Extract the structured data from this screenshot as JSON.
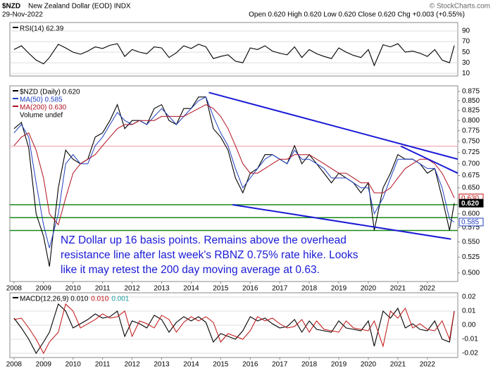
{
  "header": {
    "symbol": "$NZD",
    "name": "New Zealand Dollar (EOD) INDX",
    "date": "29-Nov-2022",
    "quote": "Open 0.620 High 0.620 Low 0.620 Close 0.620 Chg +0.003 (+0.55%)",
    "copyright": "© StockCharts.com"
  },
  "chart_data": [
    {
      "type": "line",
      "x": [
        2008,
        2008.25,
        2008.5,
        2008.75,
        2009,
        2009.2,
        2009.5,
        2009.75,
        2010,
        2010.25,
        2010.5,
        2010.75,
        2011,
        2011.25,
        2011.5,
        2011.75,
        2012,
        2012.25,
        2012.5,
        2012.75,
        2013,
        2013.25,
        2013.5,
        2013.75,
        2014,
        2014.25,
        2014.5,
        2014.75,
        2015,
        2015.25,
        2015.5,
        2015.75,
        2016,
        2016.25,
        2016.5,
        2016.75,
        2017,
        2017.25,
        2017.5,
        2017.75,
        2018,
        2018.25,
        2018.5,
        2018.75,
        2019,
        2019.25,
        2019.5,
        2019.75,
        2020,
        2020.2,
        2020.5,
        2020.75,
        2021,
        2021.25,
        2021.5,
        2021.75,
        2022,
        2022.25,
        2022.5,
        2022.75,
        2022.91
      ],
      "xlim": [
        2007.86,
        2023.03
      ],
      "ylim": [
        5,
        106
      ],
      "yticks": [
        10,
        30,
        50,
        70,
        90
      ],
      "grid": true,
      "series": [
        {
          "name": "RSI(14) 62.39",
          "color": "#000000",
          "values": [
            55,
            62,
            48,
            35,
            28,
            40,
            65,
            58,
            50,
            46,
            52,
            60,
            57,
            63,
            66,
            42,
            55,
            50,
            47,
            60,
            58,
            40,
            49,
            62,
            57,
            65,
            60,
            38,
            42,
            45,
            33,
            30,
            58,
            55,
            62,
            52,
            48,
            45,
            60,
            40,
            55,
            47,
            42,
            38,
            58,
            50,
            44,
            40,
            55,
            25,
            64,
            60,
            66,
            50,
            52,
            48,
            42,
            55,
            35,
            30,
            62.39
          ]
        }
      ]
    },
    {
      "type": "line",
      "x": [
        2008,
        2008.25,
        2008.5,
        2008.75,
        2009,
        2009.2,
        2009.5,
        2009.75,
        2010,
        2010.25,
        2010.5,
        2010.75,
        2011,
        2011.25,
        2011.5,
        2011.75,
        2012,
        2012.25,
        2012.5,
        2012.75,
        2013,
        2013.25,
        2013.5,
        2013.75,
        2014,
        2014.25,
        2014.5,
        2014.75,
        2015,
        2015.25,
        2015.5,
        2015.75,
        2016,
        2016.25,
        2016.5,
        2016.75,
        2017,
        2017.25,
        2017.5,
        2017.75,
        2018,
        2018.25,
        2018.5,
        2018.75,
        2019,
        2019.25,
        2019.5,
        2019.75,
        2020,
        2020.2,
        2020.5,
        2020.75,
        2021,
        2021.25,
        2021.5,
        2021.75,
        2022,
        2022.25,
        2022.5,
        2022.75,
        2022.91
      ],
      "xlim": [
        2007.86,
        2023.03
      ],
      "ylim": [
        0.487,
        0.89
      ],
      "log_scale": true,
      "grid": false,
      "yticks": [
        {
          "value": 0.5,
          "label": "0.500"
        },
        {
          "value": 0.525,
          "label": "0.525"
        },
        {
          "value": 0.55,
          "label": "0.550"
        },
        {
          "value": 0.575,
          "label": "0.575"
        },
        {
          "value": 0.6,
          "label": "0.600"
        },
        {
          "value": 0.65,
          "label": "0.650"
        },
        {
          "value": 0.675,
          "label": "0.675"
        },
        {
          "value": 0.7,
          "label": "0.700"
        },
        {
          "value": 0.725,
          "label": "0.725"
        },
        {
          "value": 0.75,
          "label": "0.750"
        },
        {
          "value": 0.775,
          "label": "0.775"
        },
        {
          "value": 0.8,
          "label": "0.800"
        },
        {
          "value": 0.825,
          "label": "0.825"
        },
        {
          "value": 0.85,
          "label": "0.850"
        },
        {
          "value": 0.875,
          "label": "0.875"
        }
      ],
      "xticks": [
        2008,
        2009,
        2010,
        2011,
        2012,
        2013,
        2014,
        2015,
        2016,
        2017,
        2018,
        2019,
        2020,
        2021,
        2022
      ],
      "series": [
        {
          "name": "$NZD (Daily) 0.620",
          "color": "#000000",
          "values": [
            0.78,
            0.795,
            0.735,
            0.6,
            0.56,
            0.51,
            0.65,
            0.73,
            0.71,
            0.7,
            0.71,
            0.76,
            0.77,
            0.8,
            0.84,
            0.78,
            0.8,
            0.8,
            0.79,
            0.83,
            0.84,
            0.8,
            0.79,
            0.83,
            0.83,
            0.86,
            0.86,
            0.78,
            0.76,
            0.73,
            0.67,
            0.64,
            0.68,
            0.69,
            0.72,
            0.72,
            0.71,
            0.7,
            0.74,
            0.7,
            0.72,
            0.7,
            0.68,
            0.66,
            0.68,
            0.67,
            0.66,
            0.64,
            0.66,
            0.57,
            0.65,
            0.68,
            0.72,
            0.71,
            0.71,
            0.7,
            0.68,
            0.69,
            0.63,
            0.57,
            0.62
          ]
        },
        {
          "name": "MA(50) 0.585",
          "color": "#1f3fbf",
          "values": [
            0.77,
            0.79,
            0.76,
            0.66,
            0.58,
            0.54,
            0.6,
            0.7,
            0.72,
            0.7,
            0.7,
            0.74,
            0.76,
            0.79,
            0.82,
            0.8,
            0.79,
            0.8,
            0.79,
            0.81,
            0.83,
            0.81,
            0.79,
            0.81,
            0.83,
            0.85,
            0.86,
            0.81,
            0.77,
            0.74,
            0.69,
            0.65,
            0.67,
            0.69,
            0.71,
            0.72,
            0.71,
            0.7,
            0.73,
            0.71,
            0.71,
            0.7,
            0.69,
            0.67,
            0.67,
            0.67,
            0.66,
            0.65,
            0.65,
            0.6,
            0.63,
            0.67,
            0.71,
            0.71,
            0.71,
            0.7,
            0.69,
            0.69,
            0.65,
            0.59,
            0.585
          ]
        },
        {
          "name": "MA(200) 0.630",
          "color": "#b01020",
          "values": [
            0.74,
            0.76,
            0.77,
            0.73,
            0.67,
            0.6,
            0.58,
            0.63,
            0.68,
            0.7,
            0.71,
            0.72,
            0.74,
            0.76,
            0.78,
            0.79,
            0.79,
            0.8,
            0.8,
            0.8,
            0.81,
            0.81,
            0.81,
            0.81,
            0.82,
            0.83,
            0.84,
            0.83,
            0.81,
            0.78,
            0.74,
            0.7,
            0.68,
            0.68,
            0.69,
            0.7,
            0.71,
            0.71,
            0.72,
            0.72,
            0.72,
            0.71,
            0.7,
            0.69,
            0.68,
            0.68,
            0.67,
            0.66,
            0.66,
            0.64,
            0.64,
            0.65,
            0.67,
            0.69,
            0.7,
            0.71,
            0.71,
            0.7,
            0.68,
            0.65,
            0.63
          ]
        }
      ],
      "legend_extra": "Volume undef",
      "hlines": [
        {
          "value": 0.739,
          "color": "#f2b8c0"
        },
        {
          "value": 0.617,
          "color": "#1a8a1a"
        },
        {
          "value": 0.593,
          "color": "#1a8a1a"
        },
        {
          "value": 0.57,
          "color": "#1a8a1a"
        }
      ],
      "trend_lines": [
        {
          "x": [
            2014.6,
            2023.03
          ],
          "y": [
            0.872,
            0.71
          ]
        },
        {
          "x": [
            2015.4,
            2022.8
          ],
          "y": [
            0.617,
            0.555
          ]
        },
        {
          "x": [
            2021.1,
            2023.03
          ],
          "y": [
            0.739,
            0.68
          ]
        }
      ],
      "last_labels": [
        {
          "value": 0.63,
          "label": "0.630",
          "color": "#c01010"
        },
        {
          "value": 0.62,
          "label": "0.620",
          "color": "#000000"
        },
        {
          "value": 0.585,
          "label": "0.585",
          "color": "#1f3fbf"
        }
      ],
      "annotation": [
        "NZ Dollar up 16 basis points. Remains above the overhead",
        "resistance line after last week's RBNZ 0.75% rate hike. Looks",
        "like it may retest the 200 day moving average at 0.63."
      ]
    },
    {
      "type": "line",
      "x": [
        2008,
        2008.25,
        2008.5,
        2008.75,
        2009,
        2009.2,
        2009.5,
        2009.75,
        2010,
        2010.25,
        2010.5,
        2010.75,
        2011,
        2011.25,
        2011.5,
        2011.75,
        2012,
        2012.25,
        2012.5,
        2012.75,
        2013,
        2013.25,
        2013.5,
        2013.75,
        2014,
        2014.25,
        2014.5,
        2014.75,
        2015,
        2015.25,
        2015.5,
        2015.75,
        2016,
        2016.25,
        2016.5,
        2016.75,
        2017,
        2017.25,
        2017.5,
        2017.75,
        2018,
        2018.25,
        2018.5,
        2018.75,
        2019,
        2019.25,
        2019.5,
        2019.75,
        2020,
        2020.2,
        2020.5,
        2020.75,
        2021,
        2021.25,
        2021.5,
        2021.75,
        2022,
        2022.25,
        2022.5,
        2022.75,
        2022.91
      ],
      "xlim": [
        2007.86,
        2023.03
      ],
      "ylim": [
        -0.023,
        0.023
      ],
      "grid": true,
      "yticks": [
        -0.02,
        -0.01,
        {
          "value": 0,
          "label": "0.00"
        },
        0.01,
        0.02
      ],
      "xticks": [
        2008,
        2009,
        2010,
        2011,
        2012,
        2013,
        2014,
        2015,
        2016,
        2017,
        2018,
        2019,
        2020,
        2021,
        2022
      ],
      "series": [
        {
          "name": "MACD(12,26,9) 0.010",
          "color": "#000000",
          "values": [
            0.005,
            -0.002,
            -0.01,
            -0.02,
            -0.012,
            -0.005,
            0.015,
            0.01,
            -0.002,
            0.001,
            0.004,
            0.008,
            0.005,
            0.006,
            0.01,
            -0.008,
            0.003,
            0.001,
            -0.002,
            0.007,
            0.004,
            -0.005,
            0.002,
            0.006,
            0.003,
            0.006,
            0.002,
            -0.012,
            -0.006,
            -0.008,
            -0.01,
            -0.004,
            0.006,
            0.003,
            0.005,
            0.001,
            -0.002,
            -0.001,
            0.004,
            -0.005,
            0.003,
            -0.003,
            -0.004,
            -0.005,
            0.003,
            -0.002,
            -0.003,
            -0.004,
            0.003,
            -0.015,
            0.01,
            0.005,
            0.012,
            -0.002,
            0.001,
            -0.003,
            -0.004,
            0.003,
            -0.01,
            -0.012,
            0.01
          ]
        },
        {
          "name": "0.010",
          "color": "#c01010",
          "values": [
            0.004,
            0.005,
            -0.002,
            -0.01,
            -0.02,
            -0.012,
            -0.005,
            0.015,
            0.01,
            -0.002,
            0.001,
            0.004,
            0.008,
            0.005,
            0.006,
            0.01,
            -0.008,
            0.003,
            0.001,
            -0.002,
            0.007,
            0.004,
            -0.005,
            0.002,
            0.006,
            0.003,
            0.006,
            0.002,
            -0.012,
            -0.006,
            -0.008,
            -0.01,
            -0.004,
            0.006,
            0.003,
            0.005,
            0.001,
            -0.002,
            -0.001,
            0.004,
            -0.005,
            0.003,
            -0.003,
            -0.004,
            -0.005,
            0.003,
            -0.002,
            -0.003,
            -0.004,
            0.003,
            -0.015,
            0.01,
            0.005,
            0.012,
            -0.002,
            0.001,
            -0.003,
            -0.004,
            0.003,
            -0.01,
            0.01
          ]
        }
      ],
      "legend_extra": "0.001"
    }
  ]
}
